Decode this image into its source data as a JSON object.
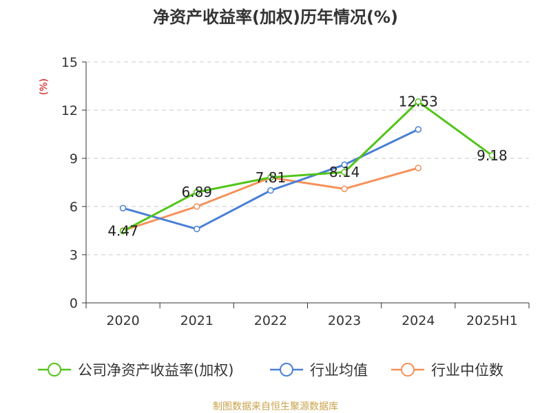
{
  "chart_data": {
    "type": "line",
    "title": "净资产收益率(加权)历年情况(%)",
    "unit_label": "(%)",
    "categories": [
      "2020",
      "2021",
      "2022",
      "2023",
      "2024",
      "2025H1"
    ],
    "ylim": [
      0,
      15
    ],
    "yticks": [
      "0",
      "3",
      "6",
      "9",
      "12",
      "15"
    ],
    "grid": true,
    "legend_position": "bottom",
    "series": [
      {
        "name": "公司净资产收益率(加权)",
        "color": "#52c41a",
        "values": [
          4.47,
          6.89,
          7.81,
          8.14,
          12.53,
          9.18
        ],
        "labels": [
          "4.47",
          "6.89",
          "7.81",
          "8.14",
          "12.53",
          "9.18"
        ]
      },
      {
        "name": "行业均值",
        "color": "#4a7fd6",
        "values": [
          5.9,
          4.6,
          7.0,
          8.6,
          10.8,
          null
        ]
      },
      {
        "name": "行业中位数",
        "color": "#f5915a",
        "values": [
          4.5,
          6.0,
          7.8,
          7.1,
          8.4,
          null
        ]
      }
    ]
  },
  "source_text": "制图数据来自恒生聚源数据库"
}
